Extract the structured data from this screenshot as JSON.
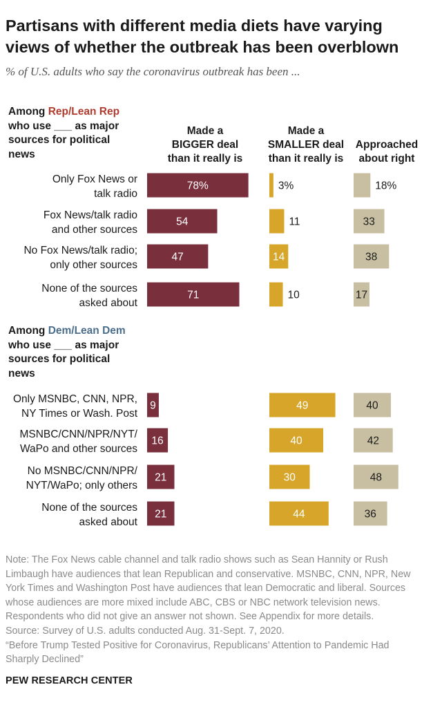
{
  "title_line1": "Partisans with different media diets have varying",
  "title_line2": "views of whether the outbreak has been overblown",
  "subtitle": "% of U.S. adults who say the coronavirus outbreak has been ...",
  "rep_group": {
    "among": "Among ",
    "party": "Rep/Lean Rep",
    "rest_line1": "who use ___ as major",
    "rest_line2": "sources for political",
    "rest_line3": "news"
  },
  "dem_group": {
    "among": "Among ",
    "party": "Dem/Lean Dem",
    "rest_line1": "who use ___ as major",
    "rest_line2": "sources for political",
    "rest_line3": "news"
  },
  "columns": {
    "bigger": [
      "Made a",
      "BIGGER deal",
      "than it really is"
    ],
    "smaller": [
      "Made a",
      "SMALLER deal",
      "than it really is"
    ],
    "right": [
      "Approached",
      "about right"
    ]
  },
  "colors": {
    "bigger": "#7a2f3d",
    "smaller": "#d6a52a",
    "right": "#c8bfa3",
    "rep": "#b03a2e",
    "dem": "#4a6d8c"
  },
  "chart_data": {
    "type": "bar",
    "title": "Partisans with different media diets have varying views of whether the outbreak has been overblown",
    "series_names": [
      "Made a BIGGER deal than it really is",
      "Made a SMALLER deal than it really is",
      "Approached about right"
    ],
    "groups": [
      {
        "name": "Rep/Lean Rep",
        "rows": [
          {
            "label": [
              "Only Fox News or",
              "talk radio"
            ],
            "bigger": 78,
            "smaller": 3,
            "right": 18,
            "bigger_label": "78%",
            "smaller_label": "3%",
            "right_label": "18%"
          },
          {
            "label": [
              "Fox News/talk radio",
              "and other sources"
            ],
            "bigger": 54,
            "smaller": 11,
            "right": 33,
            "bigger_label": "54",
            "smaller_label": "11",
            "right_label": "33"
          },
          {
            "label": [
              "No Fox News/talk radio;",
              "only other sources"
            ],
            "bigger": 47,
            "smaller": 14,
            "right": 38,
            "bigger_label": "47",
            "smaller_label": "14",
            "right_label": "38"
          },
          {
            "label": [
              "None of the sources",
              "asked about"
            ],
            "bigger": 71,
            "smaller": 10,
            "right": 17,
            "bigger_label": "71",
            "smaller_label": "10",
            "right_label": "17"
          }
        ]
      },
      {
        "name": "Dem/Lean Dem",
        "rows": [
          {
            "label": [
              "Only MSNBC, CNN, NPR,",
              "NY Times or Wash. Post"
            ],
            "bigger": 9,
            "smaller": 49,
            "right": 40,
            "bigger_label": "9",
            "smaller_label": "49",
            "right_label": "40"
          },
          {
            "label": [
              "MSNBC/CNN/NPR/NYT/",
              "WaPo and other sources"
            ],
            "bigger": 16,
            "smaller": 40,
            "right": 42,
            "bigger_label": "16",
            "smaller_label": "40",
            "right_label": "42"
          },
          {
            "label": [
              "No MSNBC/CNN/NPR/",
              "NYT/WaPo; only others"
            ],
            "bigger": 21,
            "smaller": 30,
            "right": 48,
            "bigger_label": "21",
            "smaller_label": "30",
            "right_label": "48"
          },
          {
            "label": [
              "None of the sources",
              "asked about"
            ],
            "bigger": 21,
            "smaller": 44,
            "right": 36,
            "bigger_label": "21",
            "smaller_label": "44",
            "right_label": "36"
          }
        ]
      }
    ]
  },
  "notes": [
    "Note: The Fox News cable channel and talk radio shows such as Sean Hannity or Rush",
    "Limbaugh have audiences that lean Republican and conservative. MSNBC, CNN, NPR, New",
    "York Times and Washington Post have audiences that lean Democratic and liberal. Sources",
    "whose audiences are more mixed include ABC, CBS or NBC network television news.",
    "Respondents who did not give an answer not shown. See Appendix for more details.",
    "Source: Survey of U.S. adults conducted Aug. 31-Sept. 7, 2020.",
    "“Before Trump Tested Positive for Coronavirus, Republicans’ Attention to Pandemic Had",
    "Sharply Declined”"
  ],
  "brand": "PEW RESEARCH CENTER"
}
